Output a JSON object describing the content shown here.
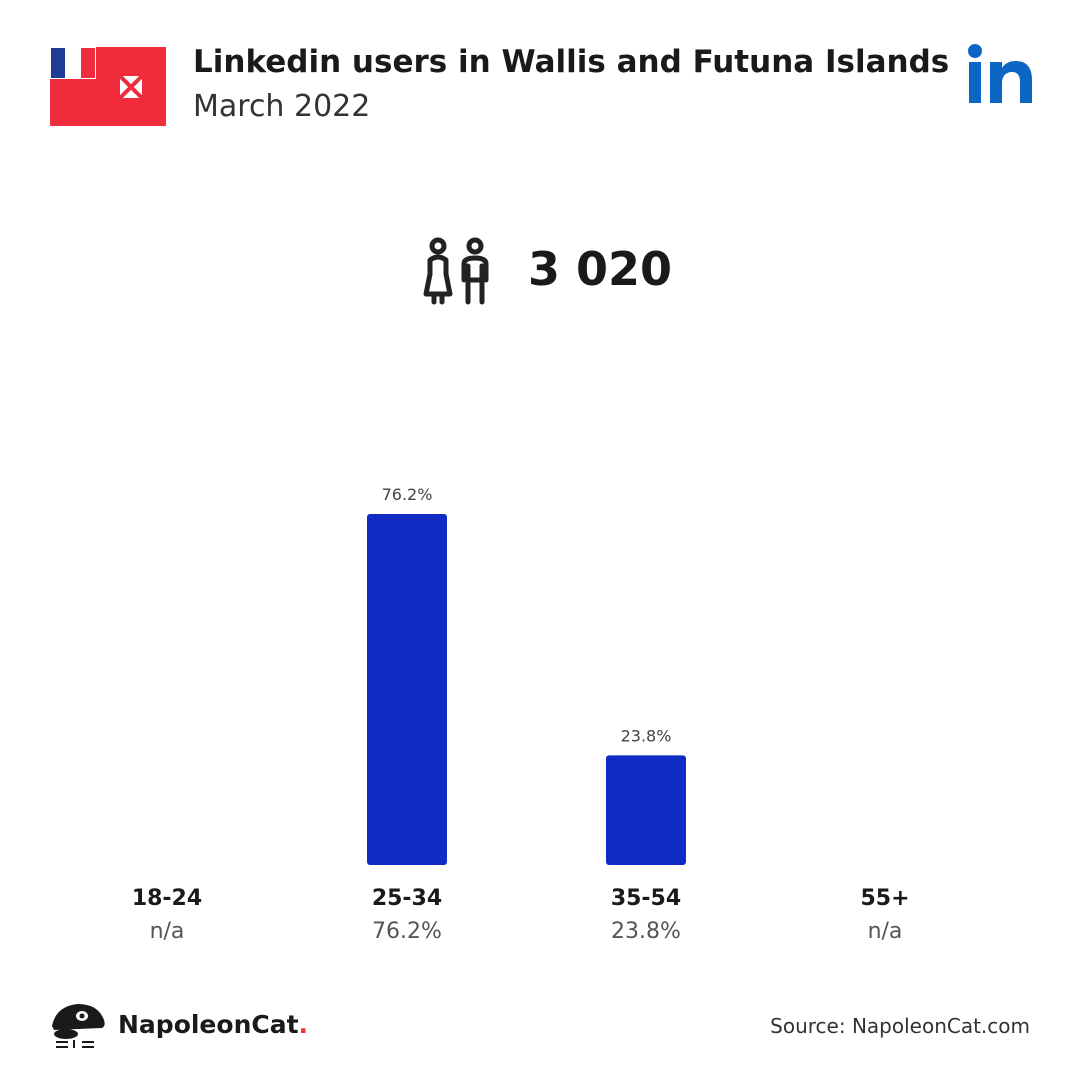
{
  "header": {
    "title": "Linkedin users in Wallis and Futuna Islands",
    "subtitle": "March 2022"
  },
  "summary": {
    "total_users": "3 020",
    "icon": "users-icon"
  },
  "colors": {
    "bar": "#102cc4",
    "linkedin": "#0a66c2",
    "flag_red": "#ef2b3c",
    "flag_blue": "#1e3c96",
    "brand_dot": "#e8333e"
  },
  "chart_data": {
    "type": "bar",
    "categories": [
      "18-24",
      "25-34",
      "35-54",
      "55+"
    ],
    "values": [
      null,
      76.2,
      23.8,
      null
    ],
    "bar_labels": [
      "",
      "76.2%",
      "23.8%",
      ""
    ],
    "value_labels": [
      "n/a",
      "76.2%",
      "23.8%",
      "n/a"
    ],
    "ylim": [
      0,
      76.2
    ],
    "grid": false
  },
  "footer": {
    "brand": "NapoleonCat",
    "brand_dot": ".",
    "source": "Source: NapoleonCat.com"
  }
}
